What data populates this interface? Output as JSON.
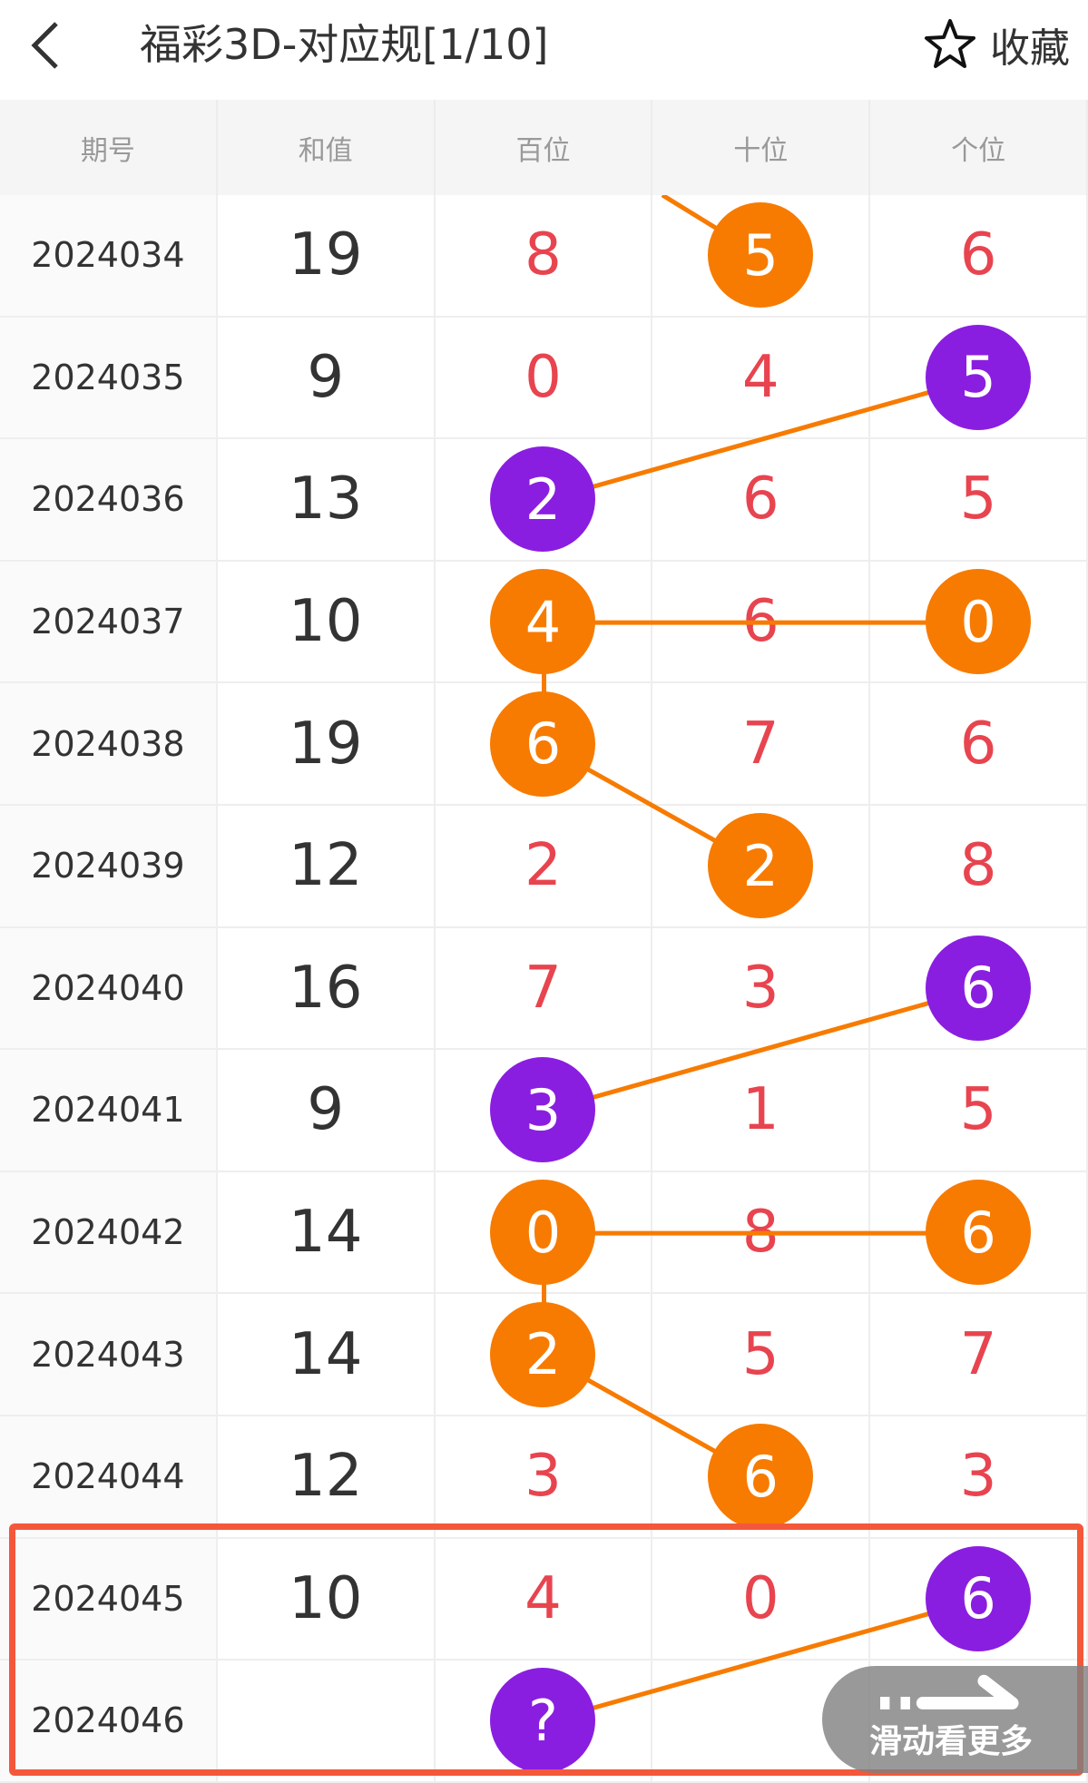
{
  "header": {
    "title": "福彩3D-对应规[1/10]",
    "favorite_label": "收藏"
  },
  "columns": [
    "期号",
    "和值",
    "百位",
    "十位",
    "个位"
  ],
  "colors": {
    "orange": "#f77b00",
    "purple": "#8a1ee0",
    "digit": "#e8444f",
    "highlight_box": "#f4583a",
    "line": "#f77b00"
  },
  "rows": [
    {
      "period": "2024034",
      "sum": "19",
      "digits": [
        "8",
        "5",
        "6"
      ],
      "balls": {
        "1": "orange"
      }
    },
    {
      "period": "2024035",
      "sum": "9",
      "digits": [
        "0",
        "4",
        "5"
      ],
      "balls": {
        "2": "purple"
      }
    },
    {
      "period": "2024036",
      "sum": "13",
      "digits": [
        "2",
        "6",
        "5"
      ],
      "balls": {
        "0": "purple"
      }
    },
    {
      "period": "2024037",
      "sum": "10",
      "digits": [
        "4",
        "6",
        "0"
      ],
      "balls": {
        "0": "orange",
        "2": "orange"
      }
    },
    {
      "period": "2024038",
      "sum": "19",
      "digits": [
        "6",
        "7",
        "6"
      ],
      "balls": {
        "0": "orange"
      }
    },
    {
      "period": "2024039",
      "sum": "12",
      "digits": [
        "2",
        "2",
        "8"
      ],
      "balls": {
        "1": "orange"
      }
    },
    {
      "period": "2024040",
      "sum": "16",
      "digits": [
        "7",
        "3",
        "6"
      ],
      "balls": {
        "2": "purple"
      }
    },
    {
      "period": "2024041",
      "sum": "9",
      "digits": [
        "3",
        "1",
        "5"
      ],
      "balls": {
        "0": "purple"
      }
    },
    {
      "period": "2024042",
      "sum": "14",
      "digits": [
        "0",
        "8",
        "6"
      ],
      "balls": {
        "0": "orange",
        "2": "orange"
      }
    },
    {
      "period": "2024043",
      "sum": "14",
      "digits": [
        "2",
        "5",
        "7"
      ],
      "balls": {
        "0": "orange"
      }
    },
    {
      "period": "2024044",
      "sum": "12",
      "digits": [
        "3",
        "6",
        "3"
      ],
      "balls": {
        "1": "orange"
      }
    },
    {
      "period": "2024045",
      "sum": "10",
      "digits": [
        "4",
        "0",
        "6"
      ],
      "balls": {
        "2": "purple"
      }
    },
    {
      "period": "2024046",
      "sum": "",
      "digits": [
        "?",
        "",
        ""
      ],
      "balls": {
        "0": "purple"
      }
    }
  ],
  "links": [
    [
      [
        1,
        2
      ],
      [
        2,
        0
      ]
    ],
    [
      [
        3,
        2
      ],
      [
        3,
        0
      ],
      [
        4,
        0
      ],
      [
        5,
        1
      ]
    ],
    [
      [
        6,
        2
      ],
      [
        7,
        0
      ]
    ],
    [
      [
        8,
        2
      ],
      [
        8,
        0
      ],
      [
        9,
        0
      ],
      [
        10,
        1
      ]
    ],
    [
      [
        11,
        2
      ],
      [
        12,
        0
      ]
    ]
  ],
  "scroll_hint": {
    "label": "滑动看更多"
  }
}
